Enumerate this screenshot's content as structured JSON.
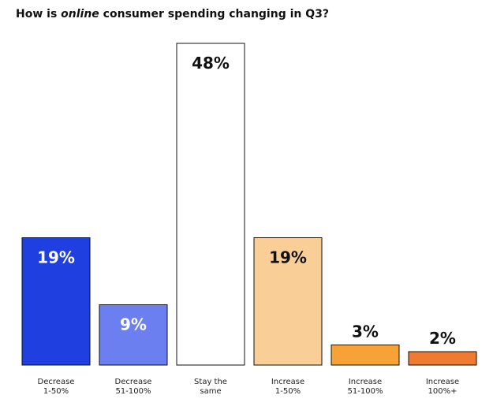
{
  "title": {
    "before": "How is ",
    "emphasis": "online",
    "after": " consumer spending changing in Q3?"
  },
  "chart_data": {
    "type": "bar",
    "title": "How is online consumer spending changing in Q3?",
    "categories": [
      [
        "Decrease",
        "1-50%"
      ],
      [
        "Decrease",
        "51-100%"
      ],
      [
        "Stay the",
        "same"
      ],
      [
        "Increase",
        "1-50%"
      ],
      [
        "Increase",
        "51-100%"
      ],
      [
        "Increase",
        "100%+"
      ]
    ],
    "values": [
      19,
      9,
      48,
      19,
      3,
      2
    ],
    "data_labels": [
      "19%",
      "9%",
      "48%",
      "19%",
      "3%",
      "2%"
    ],
    "colors": [
      "#1f3fe0",
      "#6b7ff0",
      "#ffffff",
      "#f9cf97",
      "#f7a236",
      "#f07a2f"
    ],
    "label_colors": [
      "#ffffff",
      "#ffffff",
      "#111111",
      "#111111",
      "#111111",
      "#111111"
    ],
    "ylim": [
      0,
      48
    ],
    "grid": false,
    "legend": "none"
  }
}
